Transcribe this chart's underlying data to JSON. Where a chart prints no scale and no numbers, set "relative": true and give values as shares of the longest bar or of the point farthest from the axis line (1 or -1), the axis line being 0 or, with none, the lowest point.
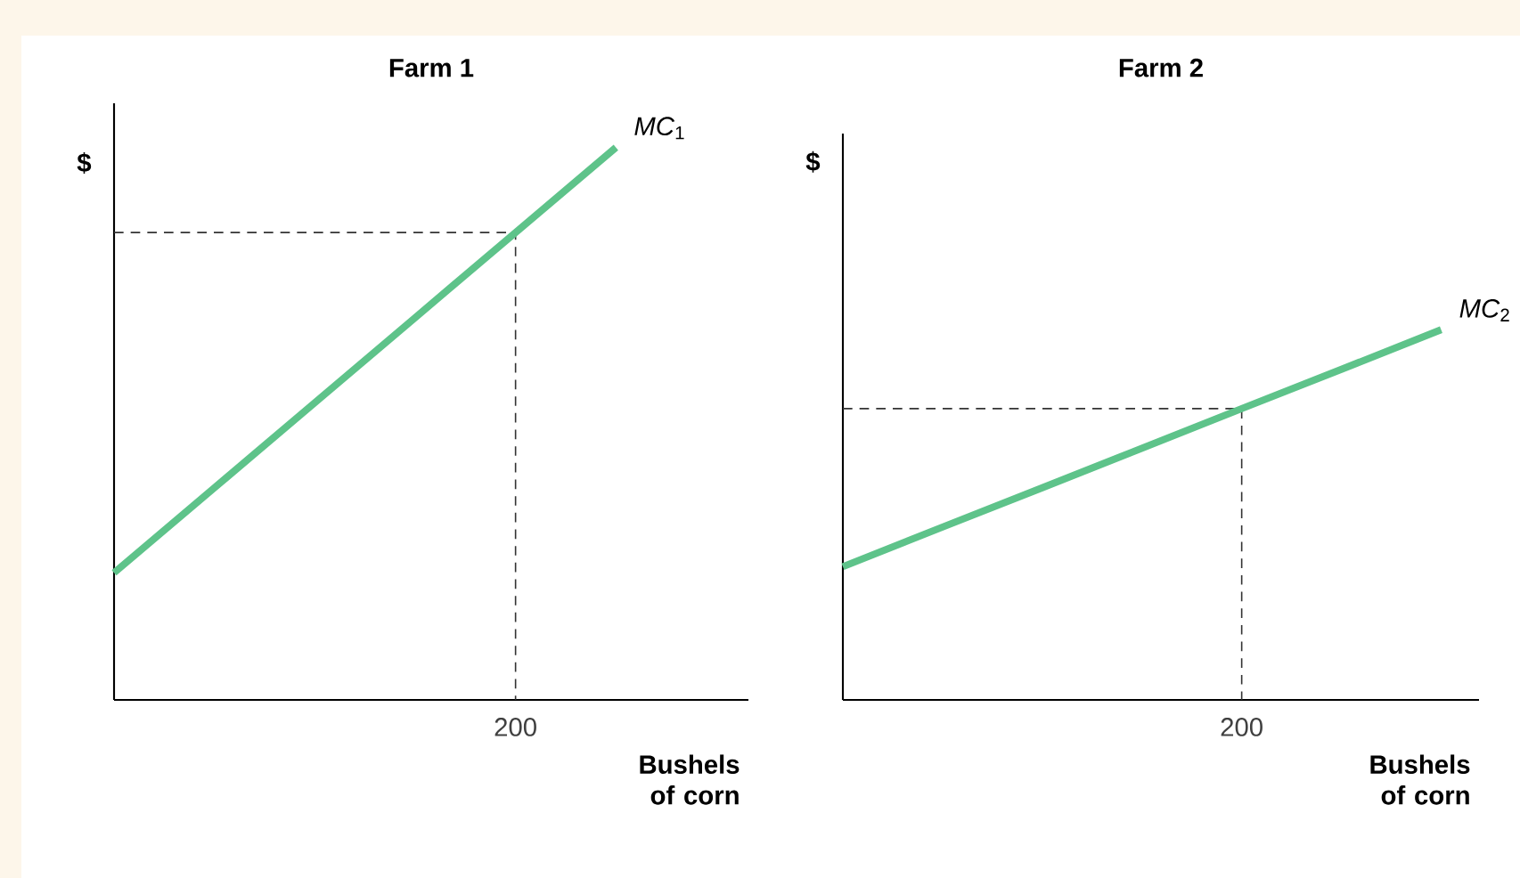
{
  "chart_data": [
    {
      "type": "line",
      "title": "Farm 1",
      "xlabel": "Bushels of corn",
      "ylabel": "$",
      "relative": true,
      "categories": [
        null,
        null,
        null,
        null,
        null,
        null,
        null
      ],
      "annotations": [
        "200"
      ],
      "ref_lines": [
        {
          "axis": "y",
          "value": 0.846,
          "color": "#333333",
          "line_style": "dashed"
        }
      ],
      "series": [
        {
          "name": "*MC*$_{1}$",
          "color": "#5ec38a",
          "values": [
            0.23,
            0.384,
            0.538,
            0.692,
            0.846,
            1,
            null
          ]
        }
      ]
    },
    {
      "type": "line",
      "title": "Farm 2",
      "xlabel": "Bushels of corn",
      "ylabel": "$",
      "relative": true,
      "categories": [
        null,
        null,
        null,
        null,
        null,
        null,
        null
      ],
      "annotations": [
        "200"
      ],
      "ref_lines": [
        {
          "axis": "y",
          "value": 0.787,
          "color": "#333333",
          "line_style": "dashed"
        }
      ],
      "series": [
        {
          "name": "*MC*$_{2}$",
          "color": "#5ec38a",
          "values": [
            0.36,
            0.467,
            0.573,
            0.68,
            0.787,
            0.893,
            1
          ]
        }
      ]
    }
  ]
}
